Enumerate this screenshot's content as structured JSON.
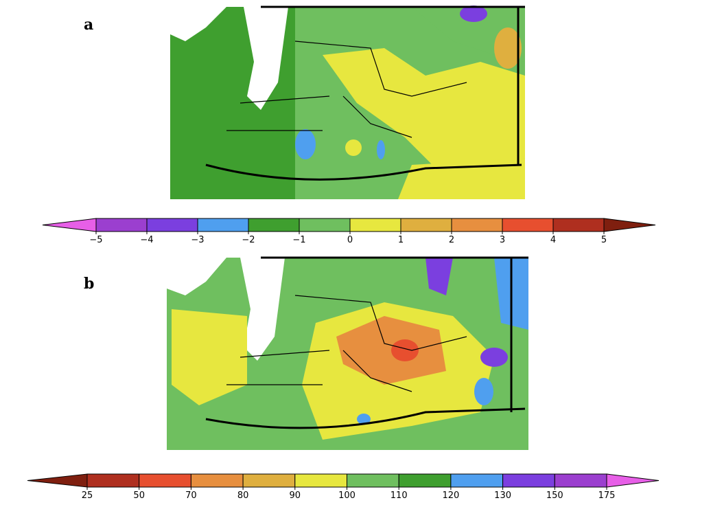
{
  "panels": [
    {
      "label": "a",
      "colorbar": {
        "ticks": [
          "−5",
          "−4",
          "−3",
          "−2",
          "−1",
          "0",
          "1",
          "2",
          "3",
          "4",
          "5"
        ],
        "colors": [
          "#9b3fcf",
          "#7b3fdf",
          "#4f9fef",
          "#3f9f2f",
          "#6fbf5f",
          "#e7e73f",
          "#dfaf3f",
          "#e78f3f",
          "#e74f2f",
          "#af2f1f"
        ],
        "low_color": "#e75fe7",
        "high_color": "#7f1f0f"
      }
    },
    {
      "label": "b",
      "colorbar": {
        "ticks": [
          "25",
          "50",
          "70",
          "80",
          "90",
          "100",
          "110",
          "120",
          "130",
          "150",
          "175"
        ],
        "colors": [
          "#af2f1f",
          "#e74f2f",
          "#e78f3f",
          "#dfaf3f",
          "#e7e73f",
          "#6fbf5f",
          "#3f9f2f",
          "#4f9fef",
          "#7b3fdf",
          "#9b3fcf"
        ],
        "low_color": "#7f1f0f",
        "high_color": "#e75fe7"
      }
    }
  ]
}
